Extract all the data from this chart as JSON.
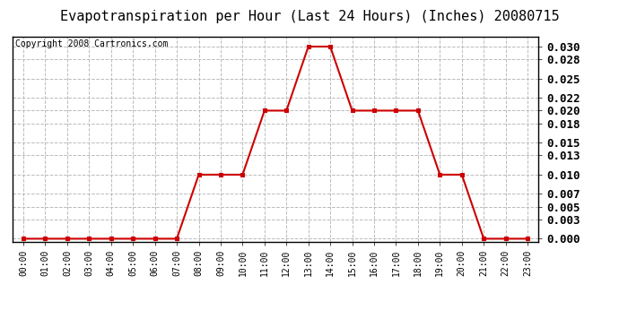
{
  "title": "Evapotranspiration per Hour (Last 24 Hours) (Inches) 20080715",
  "copyright": "Copyright 2008 Cartronics.com",
  "hours": [
    0,
    1,
    2,
    3,
    4,
    5,
    6,
    7,
    8,
    9,
    10,
    11,
    12,
    13,
    14,
    15,
    16,
    17,
    18,
    19,
    20,
    21,
    22,
    23
  ],
  "values": [
    0.0,
    0.0,
    0.0,
    0.0,
    0.0,
    0.0,
    0.0,
    0.0,
    0.01,
    0.01,
    0.01,
    0.02,
    0.02,
    0.03,
    0.03,
    0.02,
    0.02,
    0.02,
    0.02,
    0.01,
    0.01,
    0.0,
    0.0,
    0.0
  ],
  "line_color": "#cc0000",
  "marker_color": "#cc0000",
  "background_color": "#ffffff",
  "grid_color": "#bbbbbb",
  "title_fontsize": 11,
  "copyright_fontsize": 7,
  "yticks": [
    0.0,
    0.003,
    0.005,
    0.007,
    0.01,
    0.013,
    0.015,
    0.018,
    0.02,
    0.022,
    0.025,
    0.028,
    0.03
  ],
  "ylim": [
    -0.0005,
    0.0315
  ],
  "xlim": [
    -0.5,
    23.5
  ]
}
